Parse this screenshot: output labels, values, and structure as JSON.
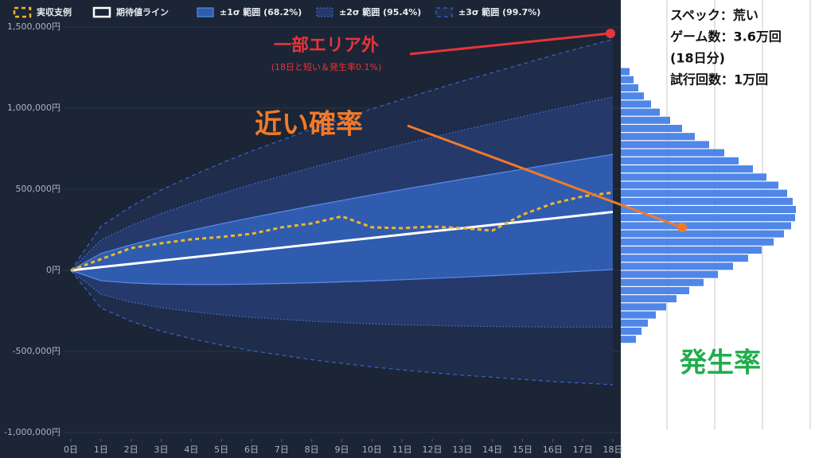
{
  "chart_data": [
    {
      "type": "line",
      "x": [
        0,
        1,
        2,
        3,
        4,
        5,
        6,
        7,
        8,
        9,
        10,
        11,
        12,
        13,
        14,
        15,
        16,
        17,
        18
      ],
      "xlim": [
        0,
        18
      ],
      "xticks": [
        {
          "value": 0,
          "label": "0日"
        },
        {
          "value": 1,
          "label": "1日"
        },
        {
          "value": 2,
          "label": "2日"
        },
        {
          "value": 3,
          "label": "3日"
        },
        {
          "value": 4,
          "label": "4日"
        },
        {
          "value": 5,
          "label": "5日"
        },
        {
          "value": 6,
          "label": "6日"
        },
        {
          "value": 7,
          "label": "7日"
        },
        {
          "value": 8,
          "label": "8日"
        },
        {
          "value": 9,
          "label": "9日"
        },
        {
          "value": 10,
          "label": "10日"
        },
        {
          "value": 11,
          "label": "11日"
        },
        {
          "value": 12,
          "label": "12日"
        },
        {
          "value": 13,
          "label": "13日"
        },
        {
          "value": 14,
          "label": "14日"
        },
        {
          "value": 15,
          "label": "15日"
        },
        {
          "value": 16,
          "label": "16日"
        },
        {
          "value": 17,
          "label": "17日"
        },
        {
          "value": 18,
          "label": "18日"
        }
      ],
      "ylim": [
        -1000000,
        1500000
      ],
      "yticks": [
        {
          "value": -1000000,
          "label": "-1,000,000円"
        },
        {
          "value": -500000,
          "label": "-500,000円"
        },
        {
          "value": 0,
          "label": "0円"
        },
        {
          "value": 500000,
          "label": "500,000円"
        },
        {
          "value": 1000000,
          "label": "1,000,000円"
        },
        {
          "value": 1500000,
          "label": "1,500,000円"
        }
      ],
      "grid": true,
      "bands": [
        {
          "name": "±3σ 範囲 (99.7%)",
          "color": "#3a63c8",
          "fill": "#1f2c4a",
          "style": "dashed",
          "upper": [
            0,
            272000,
            394000,
            495000,
            581000,
            661000,
            735000,
            803000,
            871000,
            933000,
            995000,
            1054000,
            1110000,
            1166000,
            1219000,
            1272000,
            1325000,
            1375000,
            1425000
          ],
          "lower": [
            0,
            -232000,
            -314000,
            -375000,
            -421000,
            -461000,
            -495000,
            -523000,
            -551000,
            -573000,
            -595000,
            -614000,
            -630000,
            -646000,
            -659000,
            -672000,
            -685000,
            -695000,
            -705000
          ]
        },
        {
          "name": "±2σ 範囲 (95.4%)",
          "color": "#4a72d6",
          "fill": "#25396b",
          "style": "dotted",
          "upper": [
            0,
            188000,
            276000,
            350000,
            414000,
            474000,
            530000,
            582000,
            634000,
            682000,
            730000,
            776000,
            820000,
            864000,
            906000,
            948000,
            990000,
            1030000,
            1070000
          ],
          "lower": [
            0,
            -148000,
            -196000,
            -230000,
            -254000,
            -274000,
            -290000,
            -302000,
            -314000,
            -322000,
            -330000,
            -336000,
            -340000,
            -344000,
            -346000,
            -348000,
            -350000,
            -350000,
            -350000
          ]
        },
        {
          "name": "±1σ 範囲 (68.2%)",
          "color": "#5a8ce8",
          "fill": "#2f5cae",
          "style": "solid",
          "upper": [
            0,
            104000,
            158000,
            205000,
            247000,
            287000,
            325000,
            361000,
            397000,
            431000,
            465000,
            498000,
            530000,
            562000,
            593000,
            624000,
            655000,
            685000,
            715000
          ],
          "lower": [
            0,
            -64000,
            -78000,
            -85000,
            -87000,
            -87000,
            -85000,
            -81000,
            -77000,
            -71000,
            -65000,
            -58000,
            -50000,
            -42000,
            -33000,
            -24000,
            -15000,
            -5000,
            5000
          ]
        }
      ],
      "series": [
        {
          "name": "実収支例",
          "color": "#f2b62b",
          "style": "dashed",
          "values": [
            0,
            69000,
            137000,
            167000,
            191000,
            206000,
            225000,
            265000,
            289000,
            333000,
            265000,
            260000,
            270000,
            260000,
            245000,
            343000,
            412000,
            456000,
            480000
          ]
        },
        {
          "name": "期待値ライン",
          "color": "#ffffff",
          "style": "solid",
          "values": [
            0,
            20000,
            40000,
            60000,
            80000,
            100000,
            120000,
            140000,
            160000,
            180000,
            200000,
            220000,
            240000,
            260000,
            280000,
            300000,
            320000,
            340000,
            360000
          ]
        }
      ],
      "annotations": [
        "一部エリア外",
        "(18日と短い＆発生率0.1%)",
        "近い確率"
      ]
    },
    {
      "type": "histogram",
      "orientation": "horizontal",
      "color": "#4f86e8",
      "title": "発生率",
      "notes": [
        "スペック：荒い",
        "ゲーム数：3.6万回",
        "(18日分)",
        "試行回数：1万回"
      ],
      "bins": [
        -450000,
        -400000,
        -350000,
        -300000,
        -250000,
        -200000,
        -150000,
        -100000,
        -50000,
        0,
        50000,
        100000,
        150000,
        200000,
        250000,
        300000,
        350000,
        400000,
        450000,
        500000,
        550000,
        600000,
        650000,
        700000,
        750000,
        800000,
        850000,
        900000,
        950000,
        1000000,
        1050000,
        1100000,
        1150000,
        1200000,
        1250000
      ],
      "values": [
        19,
        26,
        34,
        44,
        57,
        70,
        86,
        104,
        122,
        141,
        160,
        177,
        192,
        205,
        214,
        219,
        220,
        216,
        209,
        198,
        183,
        166,
        148,
        130,
        111,
        93,
        77,
        62,
        49,
        38,
        29,
        22,
        16,
        11
      ],
      "xlim": [
        0,
        240
      ]
    }
  ]
}
